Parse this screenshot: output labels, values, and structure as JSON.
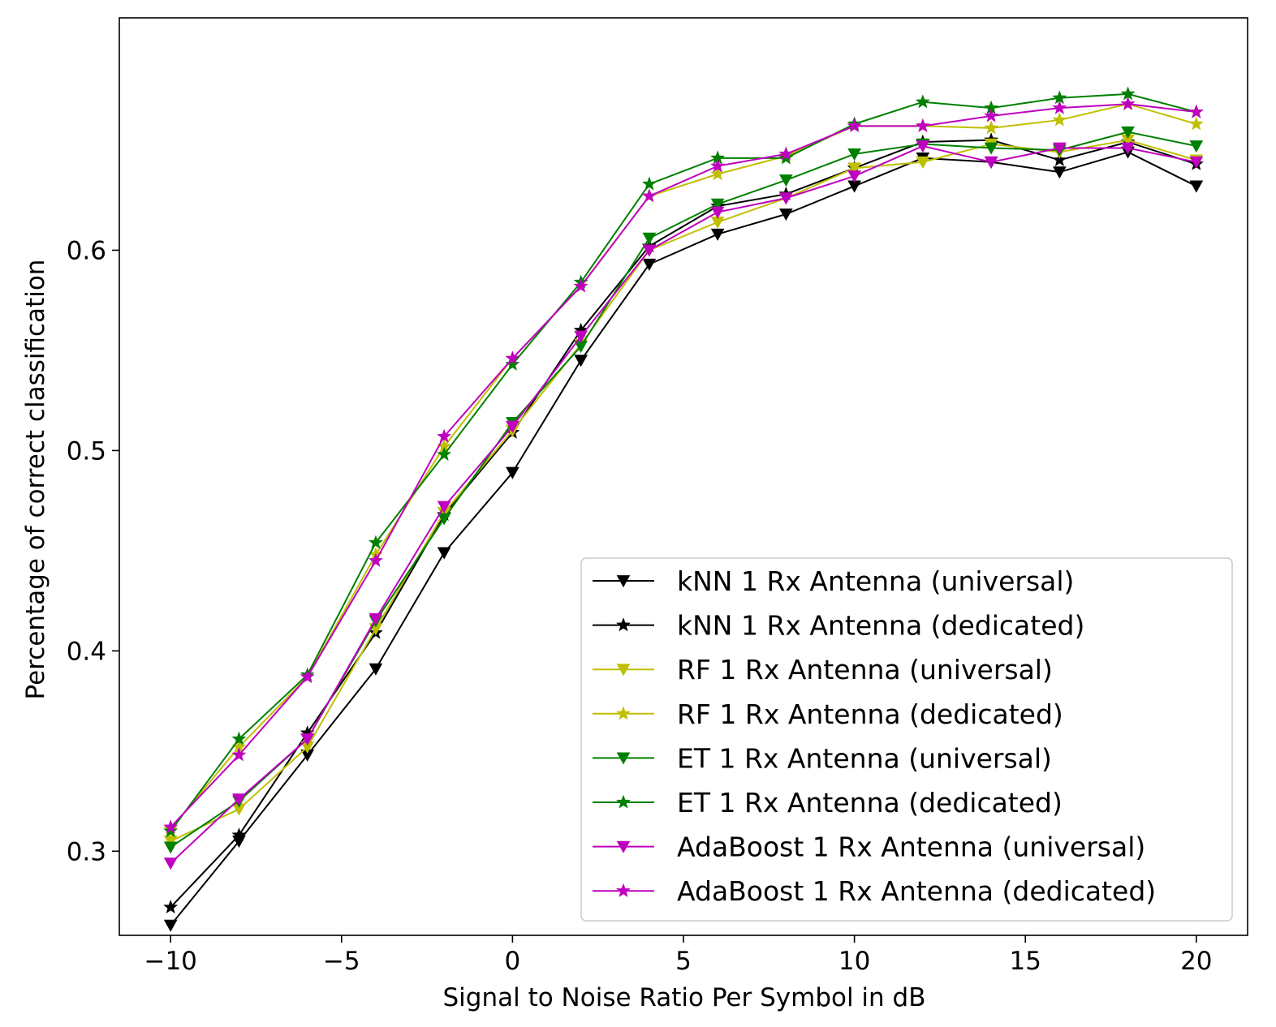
{
  "chart_data": {
    "type": "line",
    "title": "",
    "xlabel": "Signal to Noise Ratio Per Symbol in dB",
    "ylabel": "Percentage of correct classification",
    "xlim": [
      -11.5,
      21.5
    ],
    "ylim": [
      0.258,
      0.716
    ],
    "xticks": [
      -10,
      -5,
      0,
      5,
      10,
      15,
      20
    ],
    "xtick_labels": [
      "−10",
      "−5",
      "0",
      "5",
      "10",
      "15",
      "20"
    ],
    "yticks": [
      0.3,
      0.4,
      0.5,
      0.6
    ],
    "ytick_labels": [
      "0.3",
      "0.4",
      "0.5",
      "0.6"
    ],
    "grid": false,
    "legend_position": "bottom-right",
    "x": [
      -10,
      -8,
      -6,
      -4,
      -2,
      0,
      2,
      4,
      6,
      8,
      10,
      12,
      14,
      16,
      18,
      20
    ],
    "series": [
      {
        "name": "kNN 1 Rx Antenna (universal)",
        "color": "#000000",
        "marker": "triangle-down",
        "values": [
          0.263,
          0.305,
          0.348,
          0.391,
          0.449,
          0.489,
          0.545,
          0.593,
          0.608,
          0.618,
          0.632,
          0.646,
          0.644,
          0.639,
          0.649,
          0.632
        ]
      },
      {
        "name": "kNN 1 Rx Antenna (dedicated)",
        "color": "#000000",
        "marker": "star",
        "values": [
          0.272,
          0.308,
          0.359,
          0.409,
          0.468,
          0.509,
          0.56,
          0.602,
          0.622,
          0.628,
          0.641,
          0.654,
          0.655,
          0.645,
          0.654,
          0.643
        ]
      },
      {
        "name": "RF 1 Rx Antenna (universal)",
        "color": "#bfbf00",
        "marker": "triangle-down",
        "values": [
          0.305,
          0.321,
          0.352,
          0.411,
          0.469,
          0.51,
          0.553,
          0.6,
          0.614,
          0.626,
          0.641,
          0.644,
          0.653,
          0.649,
          0.655,
          0.645
        ]
      },
      {
        "name": "RF 1 Rx Antenna (dedicated)",
        "color": "#bfbf00",
        "marker": "star",
        "values": [
          0.311,
          0.352,
          0.387,
          0.448,
          0.502,
          0.546,
          0.582,
          0.627,
          0.638,
          0.647,
          0.662,
          0.662,
          0.661,
          0.665,
          0.673,
          0.663
        ]
      },
      {
        "name": "ET 1 Rx Antenna (universal)",
        "color": "#008000",
        "marker": "triangle-down",
        "values": [
          0.302,
          0.325,
          0.356,
          0.415,
          0.466,
          0.514,
          0.552,
          0.606,
          0.623,
          0.635,
          0.648,
          0.653,
          0.651,
          0.65,
          0.659,
          0.652
        ]
      },
      {
        "name": "ET 1 Rx Antenna (dedicated)",
        "color": "#008000",
        "marker": "star",
        "values": [
          0.31,
          0.356,
          0.388,
          0.454,
          0.498,
          0.543,
          0.584,
          0.633,
          0.646,
          0.646,
          0.663,
          0.674,
          0.671,
          0.676,
          0.678,
          0.669
        ]
      },
      {
        "name": "AdaBoost 1 Rx Antenna (universal)",
        "color": "#bf00bf",
        "marker": "triangle-down",
        "values": [
          0.294,
          0.326,
          0.356,
          0.416,
          0.472,
          0.512,
          0.557,
          0.6,
          0.619,
          0.626,
          0.637,
          0.652,
          0.644,
          0.651,
          0.651,
          0.644
        ]
      },
      {
        "name": "AdaBoost 1 Rx Antenna (dedicated)",
        "color": "#bf00bf",
        "marker": "star",
        "values": [
          0.312,
          0.348,
          0.387,
          0.445,
          0.507,
          0.546,
          0.582,
          0.627,
          0.642,
          0.648,
          0.662,
          0.662,
          0.667,
          0.671,
          0.673,
          0.669
        ]
      }
    ]
  }
}
